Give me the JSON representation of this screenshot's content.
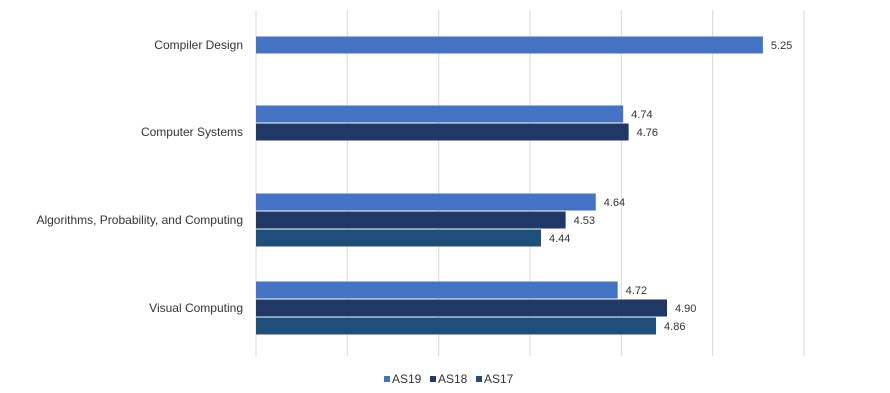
{
  "chart_data": {
    "type": "bar",
    "orientation": "horizontal",
    "categories": [
      "Compiler Design",
      "Computer Systems",
      "Algorithms, Probability, and Computing",
      "Visual Computing"
    ],
    "series": [
      {
        "name": "AS19",
        "color": "#4472c4",
        "values": [
          5.25,
          4.74,
          4.64,
          4.72
        ],
        "labels": [
          "5.25",
          "4.74",
          "4.64",
          "4.72"
        ]
      },
      {
        "name": "AS18",
        "color": "#203864",
        "values": [
          null,
          4.76,
          4.53,
          4.9
        ],
        "labels": [
          null,
          "4.76",
          "4.53",
          "4.90"
        ]
      },
      {
        "name": "AS17",
        "color": "#1f4e79",
        "values": [
          null,
          null,
          4.44,
          4.86
        ],
        "labels": [
          null,
          null,
          "4.44",
          "4.86"
        ]
      }
    ],
    "xlim": [
      3.4,
      5.4
    ],
    "grid": true,
    "legend": "bottom-center",
    "title": "",
    "xlabel": "",
    "ylabel": ""
  }
}
